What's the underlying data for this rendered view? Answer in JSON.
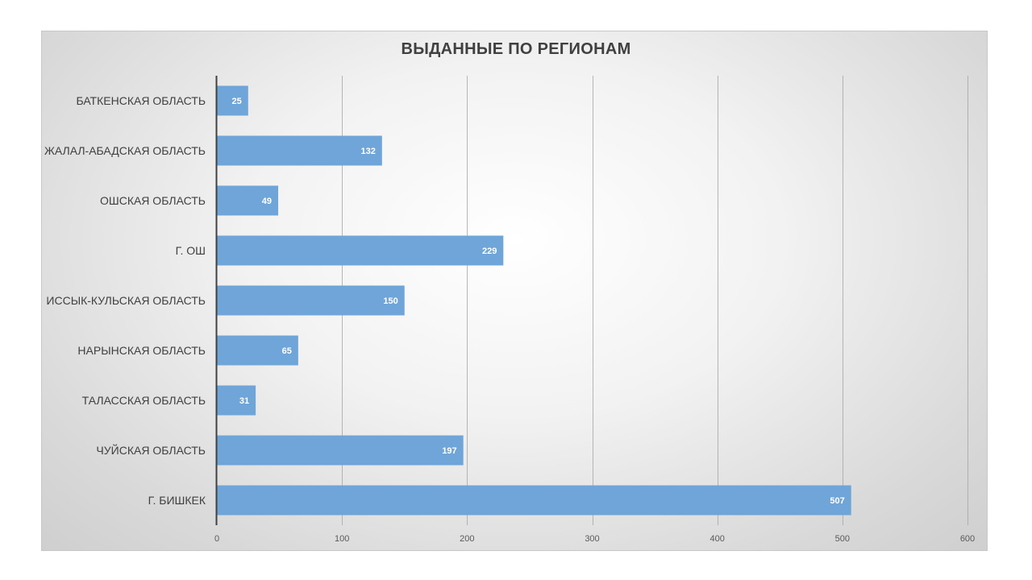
{
  "chart_data": {
    "type": "bar",
    "orientation": "horizontal",
    "title": "ВЫДАННЫЕ ПО РЕГИОНАМ",
    "categories": [
      "БАТКЕНСКАЯ ОБЛАСТЬ",
      "ЖАЛАЛ-АБАДСКАЯ ОБЛАСТЬ",
      "ОШСКАЯ ОБЛАСТЬ",
      "Г. ОШ",
      "ИССЫК-КУЛЬСКАЯ ОБЛАСТЬ",
      "НАРЫНСКАЯ ОБЛАСТЬ",
      "ТАЛАССКАЯ ОБЛАСТЬ",
      "ЧУЙСКАЯ ОБЛАСТЬ",
      "Г. БИШКЕК"
    ],
    "values": [
      25,
      132,
      49,
      229,
      150,
      65,
      31,
      197,
      507
    ],
    "xlim": [
      0,
      600
    ],
    "xticks": [
      "0",
      "100",
      "200",
      "300",
      "400",
      "500",
      "600"
    ],
    "xlabel": "",
    "ylabel": "",
    "grid": "vertical",
    "legend": "none",
    "data_labels": "inside-end",
    "bar_color": "#6fa5d8"
  }
}
